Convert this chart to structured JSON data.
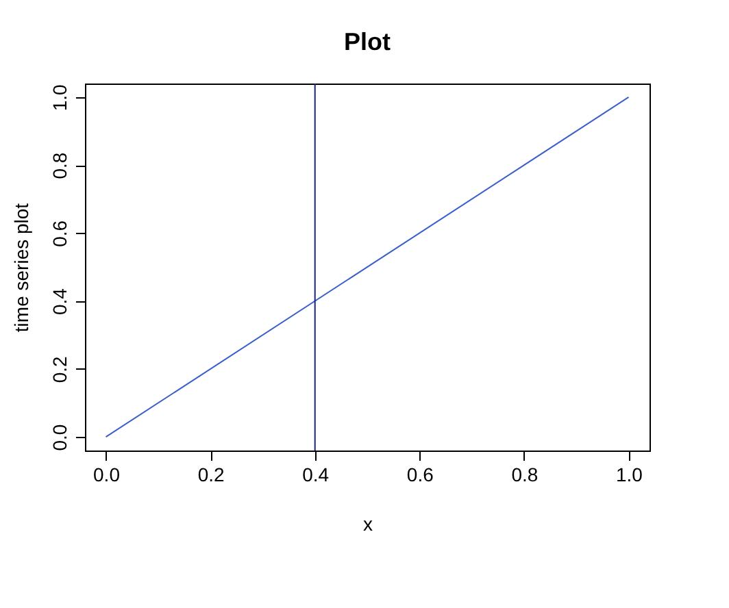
{
  "chart_data": {
    "type": "line",
    "title": "Plot",
    "xlabel": "x",
    "ylabel": "time series plot",
    "x": [
      0,
      1
    ],
    "series": [
      {
        "color": "#3a5fcd",
        "values": [
          0,
          1
        ]
      }
    ],
    "xlim": [
      -0.04,
      1.04
    ],
    "ylim": [
      -0.04,
      1.04
    ],
    "xticks": [
      {
        "value": 0,
        "label": "0.0"
      },
      0.2,
      0.4,
      0.6,
      0.8,
      {
        "value": 1,
        "label": "1.0"
      }
    ],
    "yticks": [
      {
        "value": 0,
        "label": "0.0"
      },
      0.2,
      0.4,
      0.6,
      0.8,
      {
        "value": 1,
        "label": "1.0"
      }
    ],
    "ref_lines": [
      {
        "axis": "x",
        "value": 0.4,
        "color": "#1a237e"
      }
    ],
    "grid": false
  }
}
